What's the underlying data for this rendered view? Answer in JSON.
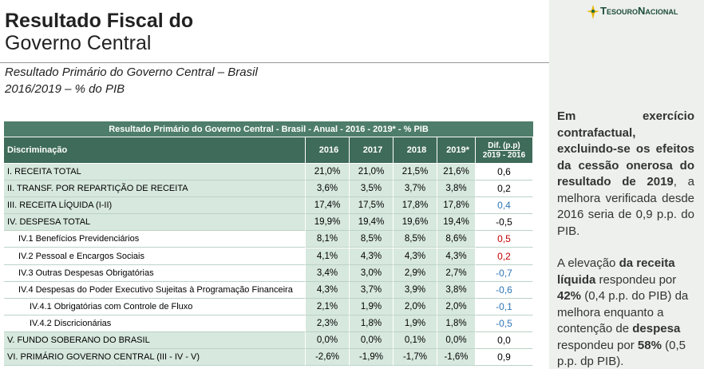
{
  "header": {
    "title_line1": "Resultado Fiscal do",
    "title_line2": "Governo Central",
    "logo": "TesouroNacional"
  },
  "subtitle": [
    "Resultado Primário do Governo Central – Brasil",
    "2016/2019 – % do PIB"
  ],
  "table": {
    "title": "Resultado Primário do Governo Central - Brasil - Anual - 2016 - 2019* - % PIB",
    "columns": [
      "Discriminação",
      "2016",
      "2017",
      "2018",
      "2019*"
    ],
    "dif_header": [
      "Dif. (p.p)",
      "2019 - 2016"
    ],
    "rows": [
      {
        "level": 0,
        "cells": [
          "I. RECEITA TOTAL",
          "21,0%",
          "21,0%",
          "21,5%",
          "21,6%",
          "0,6"
        ],
        "dif_color": "#000000"
      },
      {
        "level": 0,
        "cells": [
          "II. TRANSF. POR REPARTIÇÃO DE RECEITA",
          "3,6%",
          "3,5%",
          "3,7%",
          "3,8%",
          "0,2"
        ],
        "dif_color": "#000000"
      },
      {
        "level": 0,
        "cells": [
          "III. RECEITA LÍQUIDA  (I-II)",
          "17,4%",
          "17,5%",
          "17,8%",
          "17,8%",
          "0,4"
        ],
        "dif_color": "#2e75b6"
      },
      {
        "level": 0,
        "cells": [
          "IV. DESPESA TOTAL",
          "19,9%",
          "19,4%",
          "19,6%",
          "19,4%",
          "-0,5"
        ],
        "dif_color": "#000000"
      },
      {
        "level": 1,
        "cells": [
          "IV.1 Benefícios Previdenciários",
          "8,1%",
          "8,5%",
          "8,5%",
          "8,6%",
          "0,5"
        ],
        "dif_color": "#c00000"
      },
      {
        "level": 1,
        "cells": [
          "IV.2 Pessoal e Encargos Sociais",
          "4,1%",
          "4,3%",
          "4,3%",
          "4,3%",
          "0,2"
        ],
        "dif_color": "#c00000"
      },
      {
        "level": 1,
        "cells": [
          "IV.3 Outras Despesas Obrigatórias",
          "3,4%",
          "3,0%",
          "2,9%",
          "2,7%",
          "-0,7"
        ],
        "dif_color": "#2e75b6"
      },
      {
        "level": 1,
        "cells": [
          "IV.4 Despesas do Poder Executivo Sujeitas à Programação Financeira",
          "4,3%",
          "3,7%",
          "3,9%",
          "3,8%",
          "-0,6"
        ],
        "dif_color": "#2e75b6"
      },
      {
        "level": 2,
        "cells": [
          "IV.4.1 Obrigatórias com Controle de Fluxo",
          "2,1%",
          "1,9%",
          "2,0%",
          "2,0%",
          "-0,1"
        ],
        "dif_color": "#2e75b6"
      },
      {
        "level": 2,
        "cells": [
          "IV.4.2 Discricionárias",
          "2,3%",
          "1,8%",
          "1,9%",
          "1,8%",
          "-0,5"
        ],
        "dif_color": "#2e75b6"
      },
      {
        "level": 0,
        "cells": [
          "V. FUNDO SOBERANO DO BRASIL",
          "0,0%",
          "0,0%",
          "0,1%",
          "0,0%",
          "0,0"
        ],
        "dif_color": "#000000"
      },
      {
        "level": 0,
        "cells": [
          "VI. PRIMÁRIO GOVERNO CENTRAL (III - IV - V)",
          "-2,6%",
          "-1,9%",
          "-1,7%",
          "-1,6%",
          "0,9"
        ],
        "dif_color": "#000000"
      }
    ]
  },
  "sidebar": {
    "paragraphs": [
      [
        {
          "text": "Em exercício contrafactual, excluindo-se os efeitos da cessão onerosa do resultado de 2019",
          "bold": true
        },
        {
          "text": ", a melhora verificada desde 2016 seria de 0,9 p.p. do PIB.",
          "bold": false
        }
      ],
      [
        {
          "text": "A elevação ",
          "bold": false
        },
        {
          "text": "da receita líquida",
          "bold": true
        },
        {
          "text": " respondeu por ",
          "bold": false
        },
        {
          "text": "42%",
          "bold": true
        },
        {
          "text": " (0,4 p.p. do PIB) da melhora enquanto a contenção de ",
          "bold": false
        },
        {
          "text": "despesa",
          "bold": true
        },
        {
          "text": " respondeu por ",
          "bold": false
        },
        {
          "text": "58%",
          "bold": true
        },
        {
          "text": " (0,5 p.p. dp PIB).",
          "bold": false
        }
      ]
    ]
  }
}
